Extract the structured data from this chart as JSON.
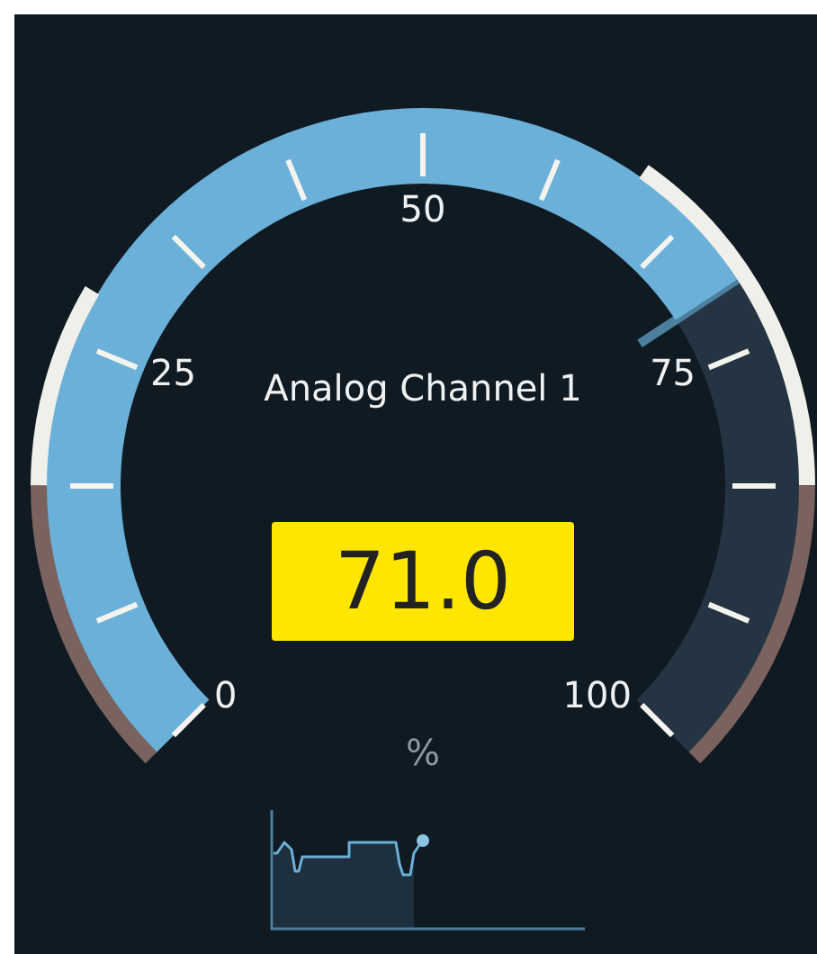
{
  "chart_data": {
    "type": "other",
    "title": "Analog Channel 1",
    "values": [
      71.0
    ],
    "value_labels": [
      "71.0"
    ],
    "annotations": [
      "0",
      "25",
      "50",
      "75",
      "100",
      "%"
    ]
  }
}
